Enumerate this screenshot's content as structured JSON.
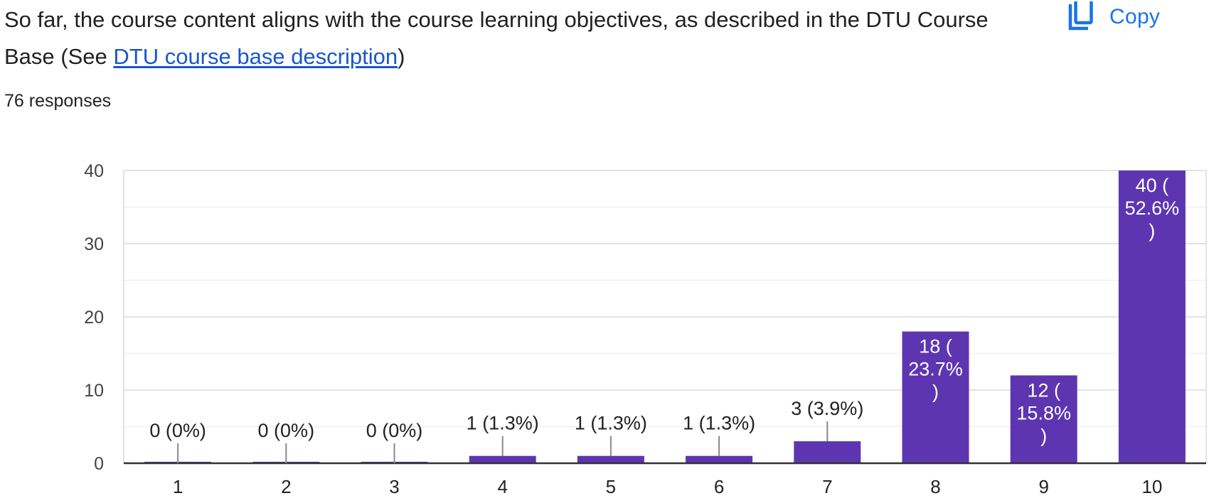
{
  "question": {
    "text_before": "So far, the course content aligns with the course learning objectives, as described in the DTU Course Base (See ",
    "link_text": "DTU course base description",
    "text_after": ")"
  },
  "copy_button": {
    "label": "Copy",
    "icon": "copy-icon"
  },
  "responses_label": "76 responses",
  "colors": {
    "bar": "#5e35b1",
    "link": "#1a56c9",
    "accent": "#1a73e8",
    "grid": "#e8e8e8",
    "axis": "#333333"
  },
  "chart_data": {
    "type": "bar",
    "categories": [
      "1",
      "2",
      "3",
      "4",
      "5",
      "6",
      "7",
      "8",
      "9",
      "10"
    ],
    "values": [
      0,
      0,
      0,
      1,
      1,
      1,
      3,
      18,
      12,
      40
    ],
    "data_labels": [
      [
        "0 (0%)"
      ],
      [
        "0 (0%)"
      ],
      [
        "0 (0%)"
      ],
      [
        "1 (1.3%)"
      ],
      [
        "1 (1.3%)"
      ],
      [
        "1 (1.3%)"
      ],
      [
        "3 (3.9%)"
      ],
      [
        "18 (",
        "23.7%",
        ")"
      ],
      [
        "12 (",
        "15.8%",
        ")"
      ],
      [
        "40 (",
        "52.6%",
        ")"
      ]
    ],
    "ylim": [
      0,
      40
    ],
    "yticks": [
      "0",
      "10",
      "20",
      "30",
      "40"
    ],
    "minor_gridlines": true,
    "legend": "none"
  }
}
